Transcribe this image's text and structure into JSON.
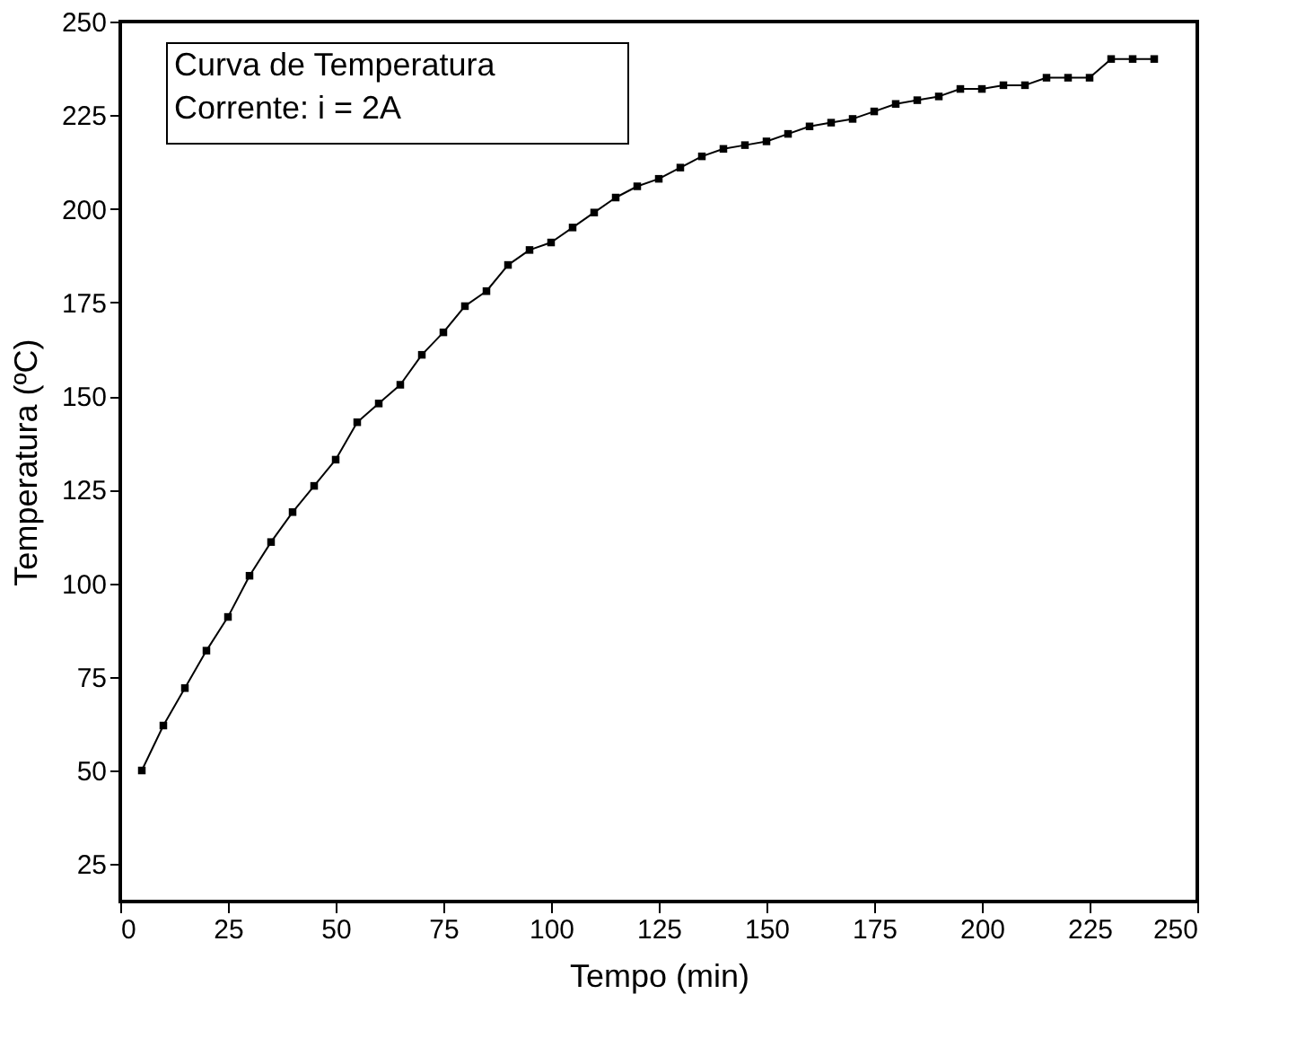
{
  "chart_data": {
    "type": "line",
    "xlabel": "Tempo (min)",
    "ylabel": "Temperatura (ºC)",
    "annotations": [
      "Curva de Temperatura",
      "Corrente: i = 2A"
    ],
    "x": [
      5,
      10,
      15,
      20,
      25,
      30,
      35,
      40,
      45,
      50,
      55,
      60,
      65,
      70,
      75,
      80,
      85,
      90,
      95,
      100,
      105,
      110,
      115,
      120,
      125,
      130,
      135,
      140,
      145,
      150,
      155,
      160,
      165,
      170,
      175,
      180,
      185,
      190,
      195,
      200,
      205,
      210,
      215,
      220,
      225,
      230,
      235,
      240
    ],
    "series": [
      {
        "color": "#000000",
        "values": [
          50,
          62,
          72,
          82,
          91,
          102,
          111,
          119,
          126,
          133,
          143,
          148,
          153,
          161,
          167,
          174,
          178,
          185,
          189,
          191,
          195,
          199,
          203,
          206,
          208,
          211,
          214,
          216,
          217,
          218,
          220,
          222,
          223,
          224,
          226,
          228,
          229,
          230,
          232,
          232,
          233,
          233,
          235,
          235,
          235,
          240,
          240,
          240
        ]
      }
    ],
    "xlim": [
      0,
      250
    ],
    "xticks": [
      0,
      25,
      50,
      75,
      100,
      125,
      150,
      175,
      200,
      225,
      250
    ],
    "ylim": [
      15,
      250
    ],
    "yticks": [
      25,
      50,
      75,
      100,
      125,
      150,
      175,
      200,
      225,
      250
    ],
    "marker": "square",
    "line_style": "solid",
    "grid": false,
    "legend": false
  }
}
